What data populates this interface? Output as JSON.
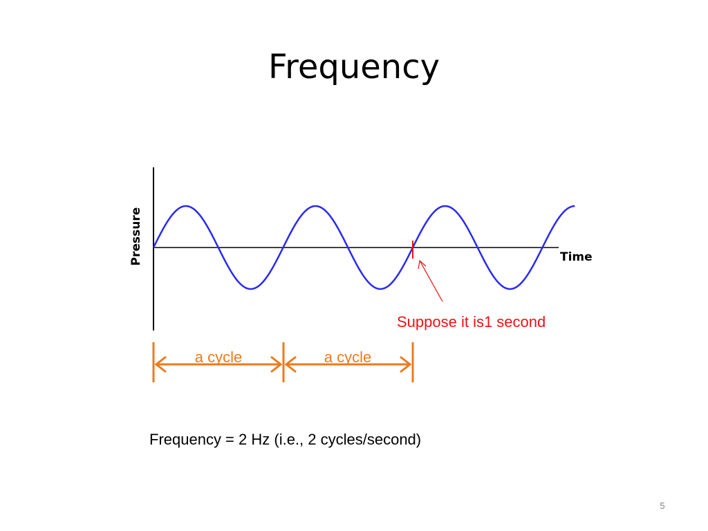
{
  "slide": {
    "title": "Frequency",
    "page_number": "5"
  },
  "diagram": {
    "y_axis_label": "Pressure",
    "x_axis_label": "Time",
    "wave": {
      "cycles_shown": 3.25,
      "color": "#2929f0"
    },
    "marker": {
      "label": "Suppose it is1 second",
      "at_cycles": 2,
      "color": "#ee1111"
    },
    "cycle_spans": [
      {
        "label": "a cycle"
      },
      {
        "label": "a cycle"
      }
    ],
    "cycle_color": "#ec7a1c"
  },
  "formula_text": "Frequency = 2 Hz (i.e., 2 cycles/second)"
}
